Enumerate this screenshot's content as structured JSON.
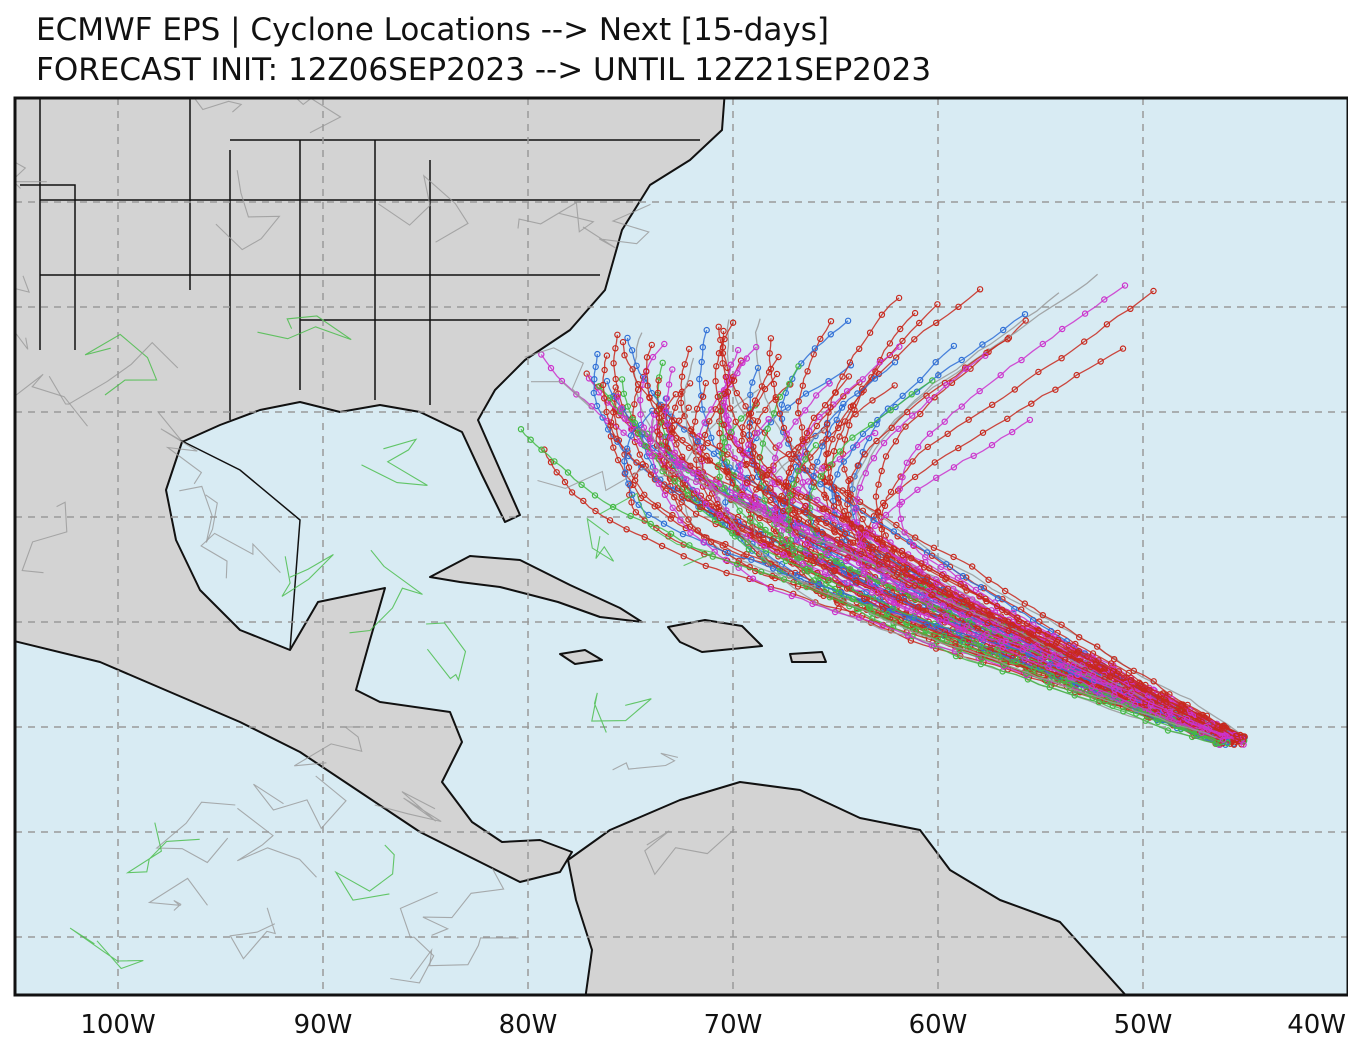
{
  "header": {
    "title": "ECMWF EPS | Cyclone Locations --> Next [15-days]",
    "subtitle": "FORECAST INIT: 12Z06SEP2023 --> UNTIL 12Z21SEP2023"
  },
  "map": {
    "lon_labels": [
      "100W",
      "90W",
      "80W",
      "70W",
      "60W",
      "50W",
      "40W"
    ]
  }
}
